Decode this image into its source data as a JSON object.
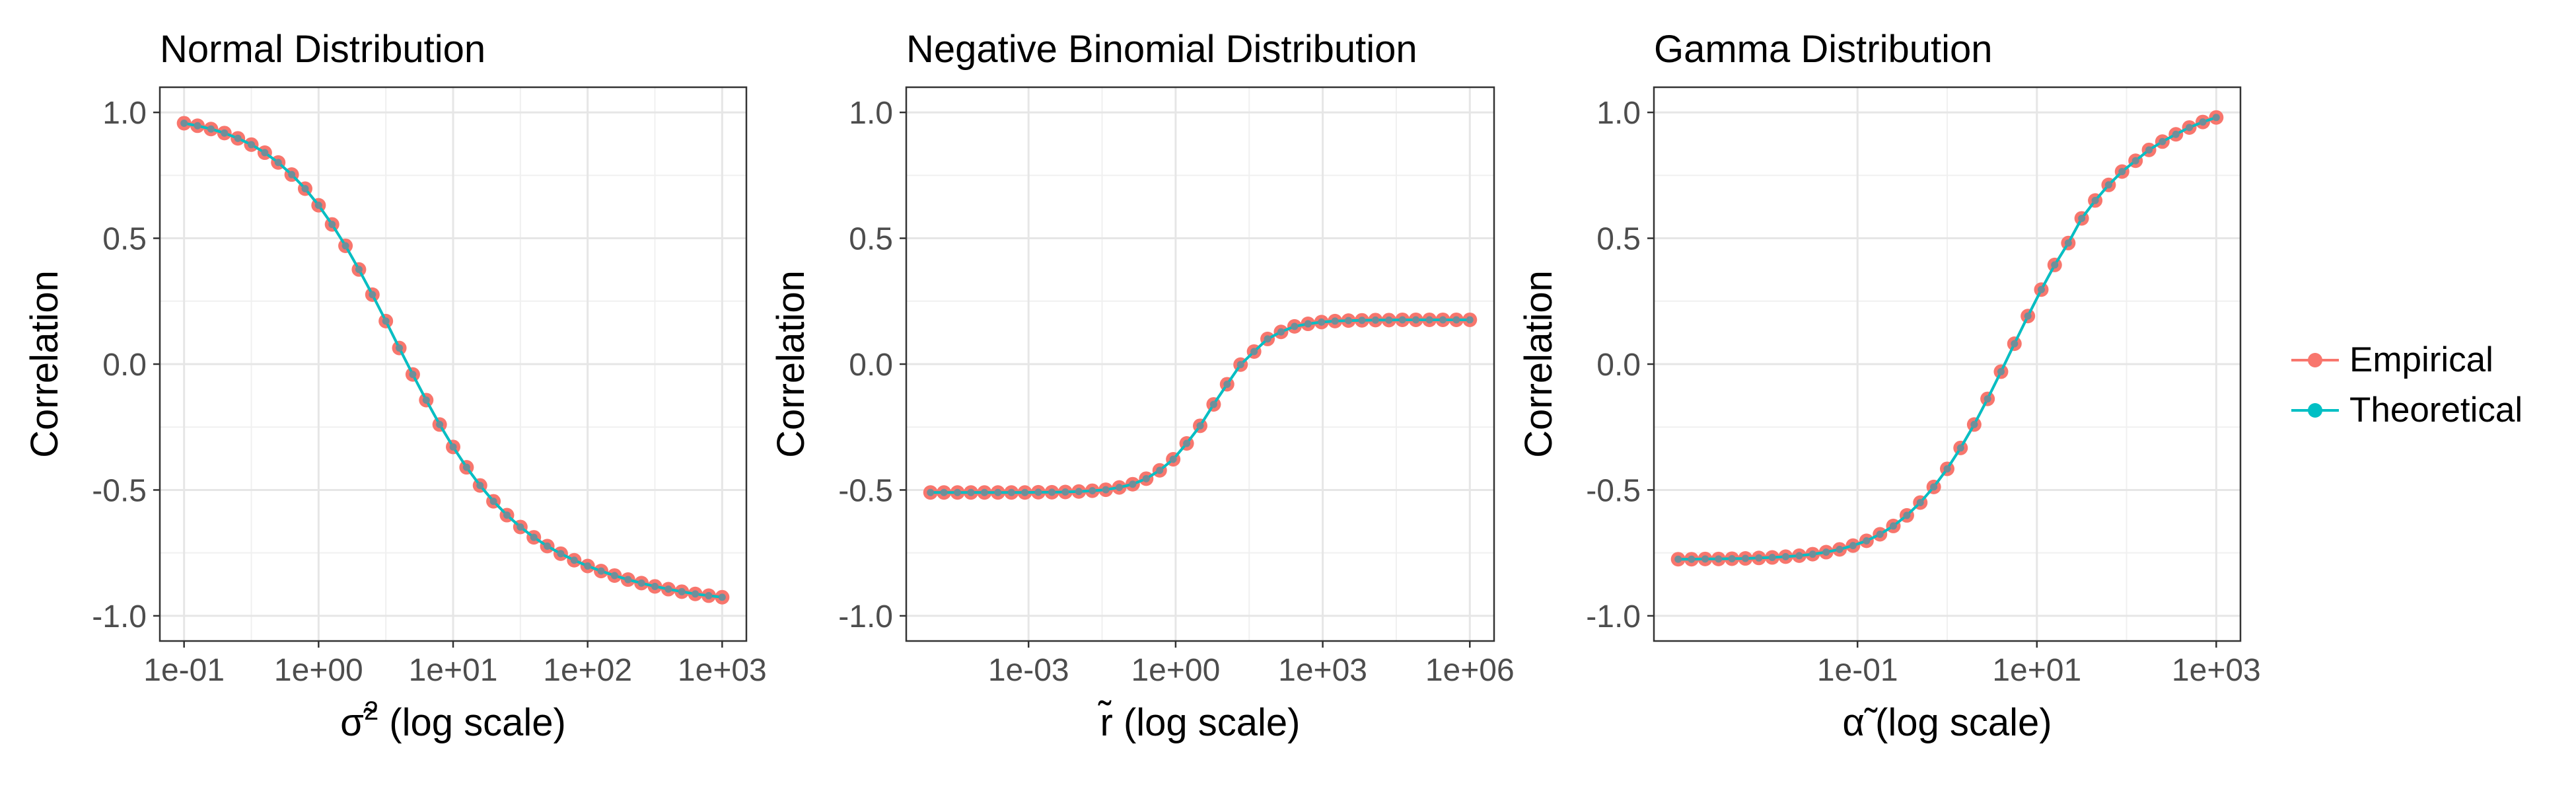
{
  "legend": {
    "items": [
      {
        "label": "Empirical",
        "color": "#F8766D"
      },
      {
        "label": "Theoretical",
        "color": "#00BFC4"
      }
    ]
  },
  "chart_data": [
    {
      "type": "scatter",
      "title": "Normal Distribution",
      "xlabel": "σ̃² (log scale)",
      "xlabel_main": "σ̃",
      "xlabel_sup": "2",
      "xlabel_rest": " (log scale)",
      "ylabel": "Correlation",
      "xscale": "log",
      "xlim": [
        0.1,
        1000
      ],
      "ylim": [
        -1.0,
        1.0
      ],
      "xticks": [
        0.1,
        1,
        10,
        100,
        1000
      ],
      "xtick_labels": [
        "1e-01",
        "1e+00",
        "1e+01",
        "1e+02",
        "1e+03"
      ],
      "yticks": [
        -1.0,
        -0.5,
        0.0,
        0.5,
        1.0
      ],
      "ytick_labels": [
        "-1.0",
        "-0.5",
        "0.0",
        "0.5",
        "1.0"
      ],
      "grid": true,
      "x": [
        0.1,
        0.1259,
        0.1585,
        0.1995,
        0.2512,
        0.3162,
        0.3981,
        0.5012,
        0.631,
        0.7943,
        1,
        1.259,
        1.585,
        1.995,
        2.512,
        3.162,
        3.981,
        5.012,
        6.31,
        7.943,
        10,
        12.59,
        15.85,
        19.95,
        25.12,
        31.62,
        39.81,
        50.12,
        63.1,
        79.43,
        100,
        125.9,
        158.5,
        199.5,
        251.2,
        316.2,
        398.1,
        501.2,
        631,
        794.3,
        1000
      ],
      "series": [
        {
          "name": "Empirical",
          "values": [
            0.957,
            0.947,
            0.934,
            0.918,
            0.897,
            0.872,
            0.84,
            0.801,
            0.753,
            0.697,
            0.631,
            0.555,
            0.47,
            0.376,
            0.276,
            0.171,
            0.064,
            -0.041,
            -0.143,
            -0.24,
            -0.329,
            -0.41,
            -0.482,
            -0.545,
            -0.6,
            -0.647,
            -0.688,
            -0.723,
            -0.753,
            -0.779,
            -0.802,
            -0.822,
            -0.84,
            -0.856,
            -0.87,
            -0.883,
            -0.894,
            -0.904,
            -0.913,
            -0.92,
            -0.926
          ]
        },
        {
          "name": "Theoretical",
          "values": [
            0.957,
            0.947,
            0.934,
            0.918,
            0.897,
            0.872,
            0.84,
            0.801,
            0.753,
            0.697,
            0.631,
            0.555,
            0.47,
            0.376,
            0.276,
            0.171,
            0.064,
            -0.041,
            -0.143,
            -0.24,
            -0.329,
            -0.41,
            -0.482,
            -0.545,
            -0.6,
            -0.647,
            -0.688,
            -0.723,
            -0.753,
            -0.779,
            -0.802,
            -0.822,
            -0.84,
            -0.856,
            -0.87,
            -0.883,
            -0.894,
            -0.904,
            -0.913,
            -0.92,
            -0.926
          ]
        }
      ]
    },
    {
      "type": "scatter",
      "title": "Negative Binomial Distribution",
      "xlabel": "r̃ (log scale)",
      "xlabel_main": "r̃",
      "xlabel_sup": "",
      "xlabel_rest": " (log scale)",
      "ylabel": "Correlation",
      "xscale": "log",
      "xlim": [
        1e-05,
        1000000
      ],
      "ylim": [
        -1.0,
        1.0
      ],
      "xticks": [
        0.001,
        1,
        1000,
        1000000
      ],
      "xtick_labels": [
        "1e-03",
        "1e+00",
        "1e+03",
        "1e+06"
      ],
      "yticks": [
        -1.0,
        -0.5,
        0.0,
        0.5,
        1.0
      ],
      "ytick_labels": [
        "-1.0",
        "-0.5",
        "0.0",
        "0.5",
        "1.0"
      ],
      "grid": true,
      "x": [
        1e-05,
        1.88e-05,
        3.55e-05,
        6.68e-05,
        0.000126,
        0.000237,
        0.000447,
        0.000841,
        0.00158,
        0.00299,
        0.00562,
        0.0106,
        0.02,
        0.0376,
        0.0708,
        0.133,
        0.251,
        0.473,
        0.891,
        1.68,
        3.16,
        5.96,
        11.2,
        21.1,
        39.8,
        75,
        141,
        266,
        501,
        944,
        1780,
        3350,
        6310,
        11900,
        22400,
        42200,
        79400,
        150000,
        282000,
        531000,
        1000000
      ],
      "series": [
        {
          "name": "Empirical",
          "values": [
            -0.51,
            -0.51,
            -0.51,
            -0.51,
            -0.51,
            -0.51,
            -0.51,
            -0.51,
            -0.509,
            -0.509,
            -0.508,
            -0.506,
            -0.503,
            -0.499,
            -0.49,
            -0.477,
            -0.455,
            -0.422,
            -0.378,
            -0.315,
            -0.245,
            -0.16,
            -0.08,
            -0.002,
            0.05,
            0.1,
            0.128,
            0.15,
            0.16,
            0.167,
            0.171,
            0.173,
            0.174,
            0.175,
            0.175,
            0.176,
            0.176,
            0.176,
            0.176,
            0.176,
            0.176
          ]
        },
        {
          "name": "Theoretical",
          "values": [
            -0.51,
            -0.51,
            -0.51,
            -0.51,
            -0.51,
            -0.51,
            -0.51,
            -0.51,
            -0.509,
            -0.509,
            -0.508,
            -0.506,
            -0.503,
            -0.499,
            -0.49,
            -0.477,
            -0.455,
            -0.422,
            -0.378,
            -0.315,
            -0.245,
            -0.16,
            -0.08,
            -0.002,
            0.05,
            0.1,
            0.128,
            0.15,
            0.16,
            0.167,
            0.171,
            0.173,
            0.174,
            0.175,
            0.175,
            0.176,
            0.176,
            0.176,
            0.176,
            0.176,
            0.176
          ]
        }
      ]
    },
    {
      "type": "scatter",
      "title": "Gamma Distribution",
      "xlabel": "α̃ (log scale)",
      "xlabel_main": "α̃",
      "xlabel_sup": "",
      "xlabel_rest": " (log scale)",
      "ylabel": "Correlation",
      "xscale": "log",
      "xlim": [
        0.001,
        1000
      ],
      "ylim": [
        -1.0,
        1.0
      ],
      "xticks": [
        0.1,
        10,
        1000
      ],
      "xtick_labels": [
        "1e-01",
        "1e+01",
        "1e+03"
      ],
      "yticks": [
        -1.0,
        -0.5,
        0.0,
        0.5,
        1.0
      ],
      "ytick_labels": [
        "-1.0",
        "-0.5",
        "0.0",
        "0.5",
        "1.0"
      ],
      "grid": true,
      "x": [
        0.001,
        0.00141,
        0.002,
        0.00282,
        0.00398,
        0.00562,
        0.00794,
        0.0112,
        0.0158,
        0.0224,
        0.0316,
        0.0447,
        0.0631,
        0.0891,
        0.126,
        0.178,
        0.251,
        0.355,
        0.501,
        0.708,
        1,
        1.41,
        2,
        2.82,
        3.98,
        5.62,
        7.94,
        11.2,
        15.8,
        22.4,
        31.6,
        44.7,
        63.1,
        89.1,
        126,
        178,
        251,
        355,
        501,
        708,
        1000
      ],
      "series": [
        {
          "name": "Empirical",
          "values": [
            -0.775,
            -0.775,
            -0.774,
            -0.774,
            -0.773,
            -0.772,
            -0.77,
            -0.768,
            -0.765,
            -0.761,
            -0.755,
            -0.747,
            -0.736,
            -0.721,
            -0.702,
            -0.676,
            -0.643,
            -0.601,
            -0.55,
            -0.488,
            -0.416,
            -0.333,
            -0.24,
            -0.138,
            -0.03,
            0.081,
            0.191,
            0.296,
            0.394,
            0.481,
            0.579,
            0.65,
            0.712,
            0.765,
            0.808,
            0.851,
            0.884,
            0.913,
            0.94,
            0.962,
            0.98
          ]
        },
        {
          "name": "Theoretical",
          "values": [
            -0.775,
            -0.775,
            -0.774,
            -0.774,
            -0.773,
            -0.772,
            -0.77,
            -0.768,
            -0.765,
            -0.761,
            -0.755,
            -0.747,
            -0.736,
            -0.721,
            -0.702,
            -0.676,
            -0.643,
            -0.601,
            -0.55,
            -0.488,
            -0.416,
            -0.333,
            -0.24,
            -0.138,
            -0.03,
            0.081,
            0.191,
            0.296,
            0.394,
            0.481,
            0.579,
            0.65,
            0.712,
            0.765,
            0.808,
            0.851,
            0.884,
            0.913,
            0.94,
            0.962,
            0.98
          ]
        }
      ]
    }
  ]
}
